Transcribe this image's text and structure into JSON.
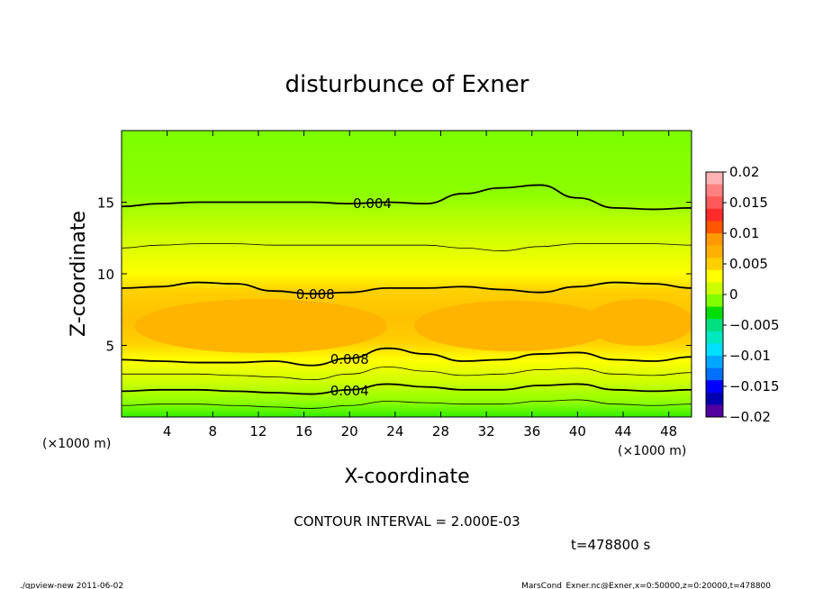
{
  "chart_data": {
    "type": "heatmap",
    "title": "disturbunce of Exner",
    "xlabel": "X-coordinate",
    "ylabel": "Z-coordinate",
    "x_unit": "(×1000 m)",
    "x_unit_right": "(×1000 m)",
    "xlim": [
      0,
      50
    ],
    "ylim": [
      0,
      20
    ],
    "x_ticks": [
      4,
      8,
      12,
      16,
      20,
      24,
      28,
      32,
      36,
      40,
      44,
      48
    ],
    "x_tick_labels": [
      "4",
      "8",
      "12",
      "16",
      "20",
      "24",
      "28",
      "32",
      "36",
      "40",
      "44",
      "48"
    ],
    "y_ticks": [
      5,
      10,
      15
    ],
    "y_tick_labels": [
      "5",
      "10",
      "15"
    ],
    "colorbar": {
      "levels": [
        0.02,
        0.015,
        0.01,
        0.005,
        0,
        -0.005,
        -0.01,
        -0.015,
        -0.02
      ],
      "labels": [
        "0.02",
        "0.015",
        "0.01",
        "0.005",
        "0",
        "−0.005",
        "−0.01",
        "−0.015",
        "−0.02"
      ],
      "colors_top_to_bottom": [
        "#ffb3b3",
        "#ff8080",
        "#ff5a5a",
        "#ff2a2a",
        "#ff5500",
        "#ff9900",
        "#ffb000",
        "#ffd000",
        "#ffff00",
        "#ccff00",
        "#80ff00",
        "#00dd00",
        "#00e080",
        "#00e8c0",
        "#00e0ff",
        "#00a8ff",
        "#0070ff",
        "#0000ff",
        "#0000b0",
        "#5000a0"
      ]
    },
    "contour_lines": [
      {
        "level": 0.004,
        "label": "0.004",
        "z": [
          14.7,
          14.9,
          15.0,
          15.0,
          15.0,
          15.0,
          14.9,
          15.0,
          14.9,
          15.6,
          16.0,
          16.2,
          15.3,
          14.6,
          14.5,
          14.6
        ]
      },
      {
        "level": 0.006,
        "label": "",
        "z": [
          11.8,
          12.0,
          12.1,
          12.1,
          12.0,
          12.0,
          12.0,
          12.0,
          12.0,
          11.8,
          11.6,
          11.9,
          12.1,
          12.1,
          12.1,
          12.0
        ]
      },
      {
        "level": 0.008,
        "label": "0.008",
        "z": [
          9.0,
          9.1,
          9.4,
          9.3,
          8.8,
          8.6,
          8.7,
          9.0,
          9.0,
          9.1,
          8.9,
          8.7,
          9.1,
          9.4,
          9.3,
          9.0
        ]
      },
      {
        "level": 0.008,
        "label": "0.008",
        "z": [
          4.0,
          3.9,
          3.8,
          3.8,
          3.9,
          3.6,
          4.1,
          4.8,
          4.4,
          3.9,
          4.0,
          4.4,
          4.5,
          4.0,
          3.9,
          4.2
        ]
      },
      {
        "level": 0.006,
        "label": "",
        "z": [
          3.0,
          3.0,
          3.0,
          2.9,
          2.8,
          2.6,
          3.0,
          3.5,
          3.2,
          2.9,
          3.0,
          3.3,
          3.4,
          3.0,
          2.9,
          3.1
        ]
      },
      {
        "level": 0.004,
        "label": "0.004",
        "z": [
          1.8,
          1.9,
          1.9,
          1.8,
          1.7,
          1.6,
          1.9,
          2.3,
          2.1,
          1.9,
          1.9,
          2.2,
          2.3,
          1.9,
          1.8,
          1.9
        ]
      },
      {
        "level": 0.002,
        "label": "",
        "z": [
          0.8,
          0.9,
          0.9,
          0.8,
          0.7,
          0.6,
          0.8,
          1.1,
          1.0,
          0.9,
          0.9,
          1.1,
          1.2,
          0.9,
          0.8,
          0.9
        ]
      }
    ],
    "contour_interval_text": "CONTOUR INTERVAL = 2.000E-03",
    "time_text": "t=478800  s",
    "footer_left": "./gpview-new   2011-06-02",
    "footer_right": "MarsCond_Exner.nc@Exner,x=0:50000,z=0:20000,t=478800"
  }
}
